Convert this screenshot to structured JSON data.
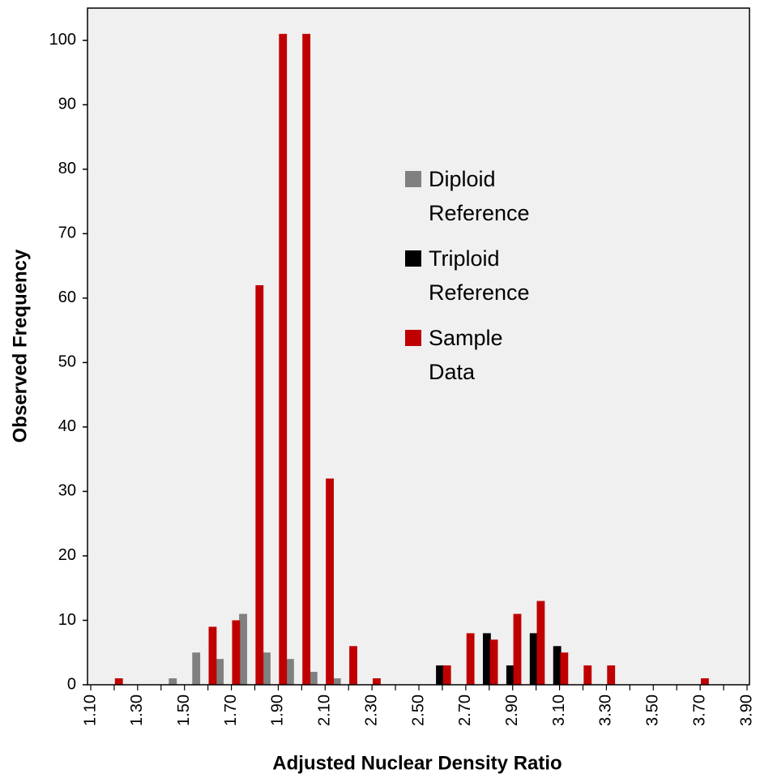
{
  "chart_data": {
    "type": "bar",
    "x_label": "Adjusted Nuclear Density Ratio",
    "y_label": "Observed Frequency",
    "categories": [
      "1.10",
      null,
      "1.30",
      null,
      "1.50",
      null,
      "1.70",
      null,
      "1.90",
      null,
      "2.10",
      null,
      "2.30",
      null,
      "2.50",
      null,
      "2.70",
      null,
      "2.90",
      null,
      "3.10",
      null,
      "3.30",
      null,
      "3.50",
      null,
      "3.70",
      null,
      "3.90"
    ],
    "series": [
      {
        "name": "Diploid Reference",
        "color": "#808080",
        "values": [
          0,
          0,
          0,
          1,
          5,
          4,
          11,
          5,
          4,
          2,
          1,
          0,
          0,
          0,
          0,
          0,
          0,
          0,
          0,
          0,
          0,
          0,
          0,
          0,
          0,
          0,
          0,
          0,
          0
        ]
      },
      {
        "name": "Triploid Reference",
        "color": "#000000",
        "values": [
          0,
          0,
          0,
          0,
          0,
          0,
          0,
          0,
          0,
          0,
          0,
          0,
          0,
          0,
          0,
          3,
          0,
          8,
          3,
          8,
          6,
          0,
          0,
          0,
          0,
          0,
          0,
          0,
          0
        ]
      },
      {
        "name": "Sample Data",
        "color": "#c00000",
        "values": [
          0,
          1,
          0,
          0,
          0,
          9,
          10,
          62,
          101,
          101,
          32,
          6,
          1,
          0,
          0,
          3,
          8,
          7,
          11,
          13,
          5,
          3,
          3,
          0,
          0,
          0,
          1,
          0,
          0
        ]
      }
    ],
    "ylim": [
      0,
      105
    ],
    "yticks": [
      0,
      10,
      20,
      30,
      40,
      50,
      60,
      70,
      80,
      90,
      100
    ],
    "grid": false
  }
}
